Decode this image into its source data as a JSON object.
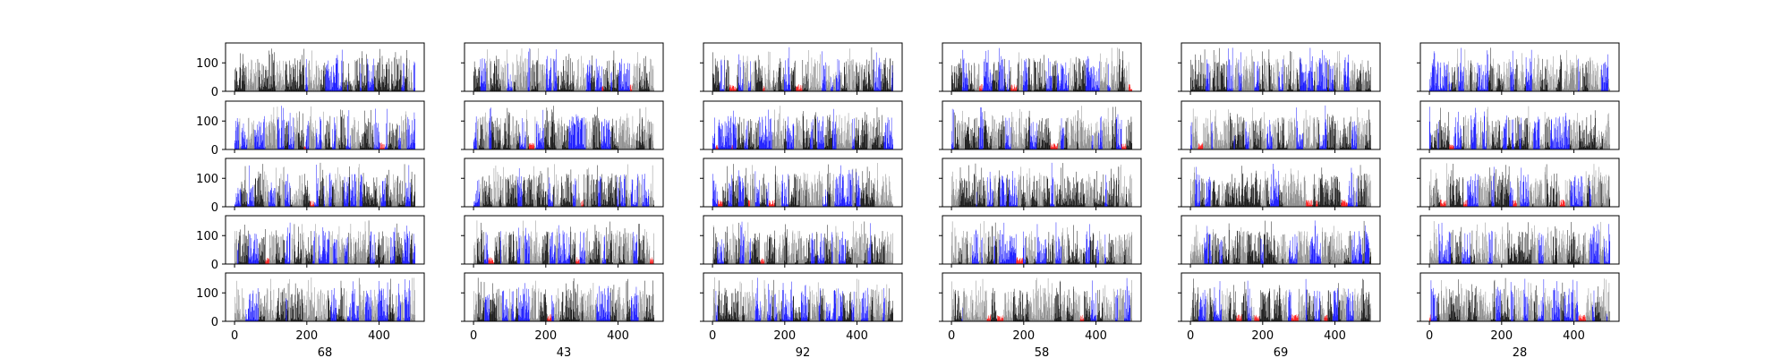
{
  "chart_data": {
    "type": "bar",
    "layout": {
      "rows": 5,
      "cols": 6,
      "sharex": true,
      "sharey": true
    },
    "xlim": [
      -25,
      525
    ],
    "ylim": [
      0,
      170
    ],
    "xticks": [
      0,
      200,
      400
    ],
    "yticks": [
      0,
      100
    ],
    "bars_per_panel": 500,
    "bar_height_range": [
      5,
      155
    ],
    "series_colors": [
      "#000000",
      "#0000ff",
      "#808080",
      "#ff0000"
    ],
    "column_xlabels": [
      "68",
      "43",
      "92",
      "58",
      "69",
      "28"
    ],
    "grid": false,
    "legend": "none"
  }
}
